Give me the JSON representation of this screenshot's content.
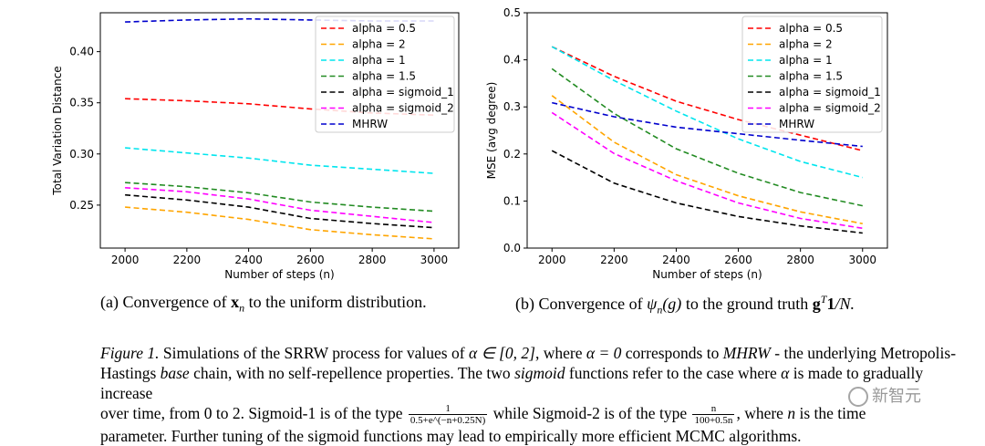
{
  "chart_data": [
    {
      "type": "line",
      "x": [
        2000,
        2200,
        2400,
        2600,
        2800,
        3000
      ],
      "xlabel": "Number of steps (n)",
      "ylabel": "Total Variation Distance",
      "xlim": [
        1920,
        3080
      ],
      "ylim": [
        0.208,
        0.438
      ],
      "xticks": [
        "2000",
        "2200",
        "2400",
        "2600",
        "2800",
        "3000"
      ],
      "yticks": [
        {
          "value": 0.25,
          "label": "0.25"
        },
        {
          "value": 0.3,
          "label": "0.30"
        },
        {
          "value": 0.35,
          "label": "0.35"
        },
        {
          "value": 0.4,
          "label": "0.40"
        }
      ],
      "grid": false,
      "legend_position": "top-right",
      "series": [
        {
          "name": "alpha = 0.5",
          "color": "#ff0000",
          "values": [
            0.354,
            0.352,
            0.349,
            0.344,
            0.34,
            0.338
          ]
        },
        {
          "name": "alpha = 2",
          "color": "#ffa500",
          "values": [
            0.248,
            0.243,
            0.236,
            0.226,
            0.221,
            0.217
          ]
        },
        {
          "name": "alpha = 1",
          "color": "#00e5ee",
          "values": [
            0.306,
            0.301,
            0.296,
            0.289,
            0.285,
            0.281
          ]
        },
        {
          "name": "alpha = 1.5",
          "color": "#228b22",
          "values": [
            0.272,
            0.268,
            0.262,
            0.253,
            0.248,
            0.244
          ]
        },
        {
          "name": "alpha = sigmoid_1",
          "color": "#000000",
          "values": [
            0.26,
            0.255,
            0.248,
            0.237,
            0.232,
            0.228
          ]
        },
        {
          "name": "alpha = sigmoid_2",
          "color": "#ff00ff",
          "values": [
            0.267,
            0.263,
            0.256,
            0.245,
            0.239,
            0.233
          ]
        },
        {
          "name": "MHRW",
          "color": "#0000cd",
          "values": [
            0.429,
            0.431,
            0.432,
            0.431,
            0.43,
            0.43
          ]
        }
      ]
    },
    {
      "type": "line",
      "x": [
        2000,
        2200,
        2400,
        2600,
        2800,
        3000
      ],
      "xlabel": "Number of steps (n)",
      "ylabel": "MSE (avg degree)",
      "xlim": [
        1920,
        3080
      ],
      "ylim": [
        0.0,
        0.5
      ],
      "xticks": [
        "2000",
        "2200",
        "2400",
        "2600",
        "2800",
        "3000"
      ],
      "yticks": [
        {
          "value": 0.0,
          "label": "0.0"
        },
        {
          "value": 0.1,
          "label": "0.1"
        },
        {
          "value": 0.2,
          "label": "0.2"
        },
        {
          "value": 0.3,
          "label": "0.3"
        },
        {
          "value": 0.4,
          "label": "0.4"
        },
        {
          "value": 0.5,
          "label": "0.5"
        }
      ],
      "grid": false,
      "legend_position": "top-right",
      "series": [
        {
          "name": "alpha = 0.5",
          "color": "#ff0000",
          "values": [
            0.428,
            0.365,
            0.312,
            0.273,
            0.24,
            0.207
          ]
        },
        {
          "name": "alpha = 2",
          "color": "#ffa500",
          "values": [
            0.324,
            0.225,
            0.156,
            0.111,
            0.077,
            0.052
          ]
        },
        {
          "name": "alpha = 1",
          "color": "#00e5ee",
          "values": [
            0.428,
            0.356,
            0.291,
            0.232,
            0.184,
            0.15
          ]
        },
        {
          "name": "alpha = 1.5",
          "color": "#228b22",
          "values": [
            0.381,
            0.286,
            0.211,
            0.159,
            0.118,
            0.09
          ]
        },
        {
          "name": "alpha = sigmoid_1",
          "color": "#000000",
          "values": [
            0.207,
            0.138,
            0.096,
            0.067,
            0.047,
            0.032
          ]
        },
        {
          "name": "alpha = sigmoid_2",
          "color": "#ff00ff",
          "values": [
            0.288,
            0.201,
            0.143,
            0.096,
            0.063,
            0.042
          ]
        },
        {
          "name": "MHRW",
          "color": "#0000cd",
          "values": [
            0.309,
            0.279,
            0.257,
            0.243,
            0.229,
            0.216
          ]
        }
      ]
    }
  ],
  "subcaptions": {
    "a_pre": "(a) Convergence of ",
    "a_var": "x",
    "a_sub": "n",
    "a_post": " to the uniform distribution.",
    "b_pre": "(b) Convergence of ",
    "b_psi": "ψ",
    "b_sub": "n",
    "b_arg": "(g)",
    "b_mid": " to the ground truth ",
    "b_g": "g",
    "b_sup": "T",
    "b_one": "1",
    "b_end": "/N."
  },
  "caption": {
    "label": "Figure 1.",
    "line1_a": " Simulations of the SRRW process for values of ",
    "alpha_range": "α ∈ [0, 2]",
    "line1_b": ", where ",
    "alpha_zero": "α = 0",
    "line1_c": " corresponds to ",
    "mhrw": "MHRW",
    "line1_d": " - the underlying Metropolis-",
    "line2_a": "Hastings ",
    "base": "base",
    "line2_b": " chain, with no self-repellence properties. The two ",
    "sigmoid": "sigmoid",
    "line2_c": " functions refer to the case where ",
    "alpha": "α",
    "line2_d": " is made to gradually increase",
    "line3_a": "over time, from 0 to 2. Sigmoid-1 is of the type ",
    "frac1_num": "1",
    "frac1_den": "0.5+e^(−n+0.25N)",
    "line3_b": " while Sigmoid-2 is of the type ",
    "frac2_num": "n",
    "frac2_den": "100+0.5n",
    "line3_c": ", where ",
    "n_var": "n",
    "line3_d": " is the time",
    "line4": "parameter. Further tuning of the sigmoid functions may lead to empirically more efficient MCMC algorithms."
  },
  "watermark": {
    "text": "新智元",
    "icon": "wechat-icon"
  }
}
